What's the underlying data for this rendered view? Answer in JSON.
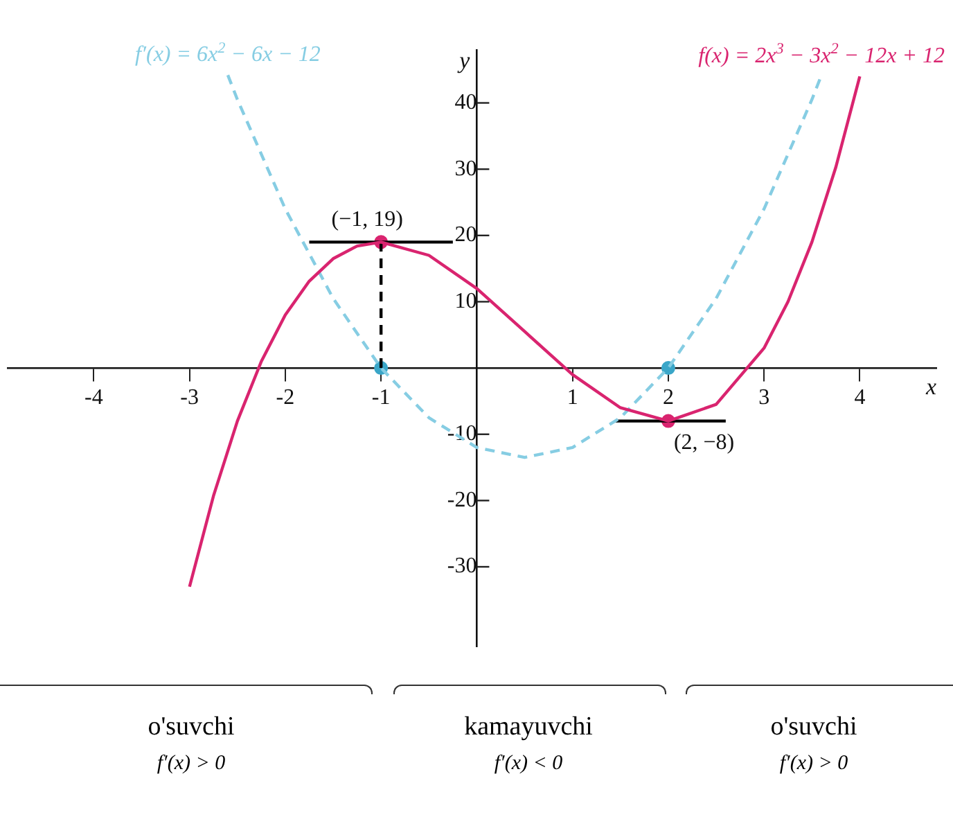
{
  "chart_data": {
    "type": "line",
    "xlabel": "x",
    "ylabel": "y",
    "xlim": [
      -4.9,
      4.8
    ],
    "ylim": [
      -42,
      48
    ],
    "xticks": [
      -4,
      -3,
      -2,
      -1,
      1,
      2,
      3,
      4
    ],
    "yticks": [
      -30,
      -20,
      -10,
      10,
      20,
      30,
      40
    ],
    "grid": false,
    "legend": false,
    "series": [
      {
        "name": "f(x) = 2x$^{3}$ − 3x$^{2}$ − 12x + 12",
        "type": "line",
        "color": "#d9246f",
        "marker": "none",
        "line_style": "solid",
        "x": [
          -3,
          -2.75,
          -2.5,
          -2.25,
          -2,
          -1.75,
          -1.5,
          -1.25,
          -1,
          -0.5,
          0,
          0.5,
          1,
          1.5,
          2,
          2.5,
          3,
          3.25,
          3.5,
          3.75,
          4
        ],
        "values": [
          -33,
          -19.3,
          -8,
          1,
          8,
          13.1,
          16.5,
          18.4,
          19,
          17,
          12,
          5.5,
          -1,
          -6,
          -8,
          -5.5,
          3,
          10,
          19,
          30.3,
          44
        ]
      },
      {
        "name": "f′(x) = 6x$^{2}$ − 6x − 12",
        "type": "line",
        "color": "#86cde3",
        "marker": "none",
        "line_style": "dashed",
        "x": [
          -2.6,
          -2.5,
          -2,
          -1.5,
          -1,
          -0.5,
          0,
          0.5,
          1,
          1.5,
          2,
          2.5,
          3,
          3.5,
          3.6
        ],
        "values": [
          44.2,
          40.5,
          24,
          10.5,
          0,
          -7.5,
          -12,
          -13.5,
          -12,
          -7.5,
          0,
          10.5,
          24,
          40.5,
          44.2
        ]
      },
      {
        "type": "line",
        "color": "#000000",
        "marker": "none",
        "line_style": "solid",
        "x": [
          -1.75,
          -0.25
        ],
        "values": [
          19,
          19
        ]
      },
      {
        "type": "line",
        "color": "#000000",
        "marker": "none",
        "line_style": "solid",
        "x": [
          1.45,
          2.6
        ],
        "values": [
          -8,
          -8
        ]
      },
      {
        "type": "line",
        "color": "#000000",
        "marker": "none",
        "line_style": "dashed",
        "x": [
          -1,
          -1
        ],
        "values": [
          0,
          19
        ]
      },
      {
        "type": "scatter",
        "color": "#d9246f",
        "marker": "circle",
        "x": [
          -1,
          2
        ],
        "values": [
          19,
          -8
        ]
      },
      {
        "type": "scatter",
        "color": "#3aa6c8",
        "marker": "circle",
        "x": [
          -1,
          2
        ],
        "values": [
          0,
          0
        ]
      }
    ],
    "annotations": [
      {
        "text": "(−1, 19)",
        "x": -1,
        "y": 19
      },
      {
        "text": "(2, −8)",
        "x": 2,
        "y": -8
      },
      "o'suvchi",
      "f′(x) > 0",
      "kamayuvchi",
      "f′(x) < 0",
      "o'suvchi",
      "f′(x) > 0"
    ]
  }
}
